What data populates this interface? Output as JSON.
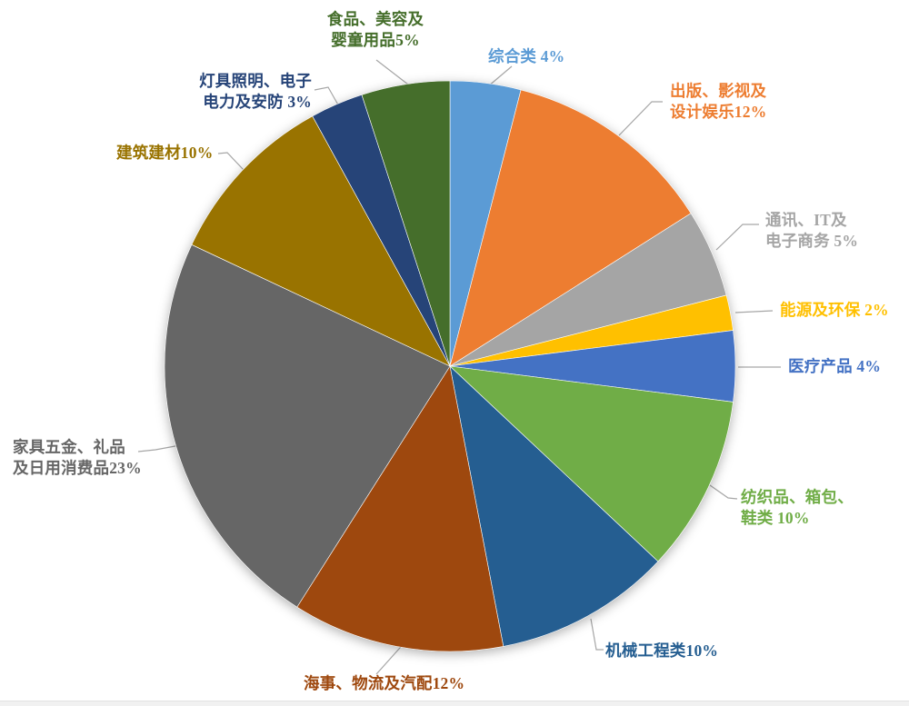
{
  "chart_data": {
    "type": "pie",
    "title": "",
    "legend": "none",
    "direction": "clockwise",
    "start_angle_deg": 0,
    "total": 100,
    "label_style": "category-name-with-percent, text colored same as slice, gray leader lines",
    "slices": [
      {
        "name": "综合类",
        "value": 4,
        "label": "综合类 4%",
        "lines": [
          "综合类 4%"
        ],
        "color": "#5B9BD5"
      },
      {
        "name": "出版、影视及设计娱乐",
        "value": 12,
        "label": "出版、影视及设计娱乐12%",
        "lines": [
          "出版、影视及",
          "设计娱乐12%"
        ],
        "color": "#ED7D31"
      },
      {
        "name": "通讯、IT及电子商务",
        "value": 5,
        "label": "通讯、IT及电子商务 5%",
        "lines": [
          "通讯、IT及",
          "电子商务 5%"
        ],
        "color": "#A5A5A5"
      },
      {
        "name": "能源及环保",
        "value": 2,
        "label": "能源及环保 2%",
        "lines": [
          "能源及环保 2%"
        ],
        "color": "#FFC000"
      },
      {
        "name": "医疗产品",
        "value": 4,
        "label": "医疗产品 4%",
        "lines": [
          "医疗产品 4%"
        ],
        "color": "#4472C4"
      },
      {
        "name": "纺织品、箱包、鞋类",
        "value": 10,
        "label": "纺织品、箱包、鞋类 10%",
        "lines": [
          "纺织品、箱包、",
          "鞋类 10%"
        ],
        "color": "#70AD47"
      },
      {
        "name": "机械工程类",
        "value": 10,
        "label": "机械工程类10%",
        "lines": [
          "机械工程类10%"
        ],
        "color": "#255E91"
      },
      {
        "name": "海事、物流及汽配",
        "value": 12,
        "label": "海事、物流及汽配12%",
        "lines": [
          "海事、物流及汽配12%"
        ],
        "color": "#9E480E"
      },
      {
        "name": "家具五金、礼品及日用消费品",
        "value": 23,
        "label": "家具五金、礼品及日用消费品23%",
        "lines": [
          "家具五金、礼品",
          "及日用消费品23%"
        ],
        "color": "#666666"
      },
      {
        "name": "建筑建材",
        "value": 10,
        "label": "建筑建材10%",
        "lines": [
          "建筑建材10%"
        ],
        "color": "#997300"
      },
      {
        "name": "灯具照明、电子电力及安防",
        "value": 3,
        "label": "灯具照明、电子电力及安防 3%",
        "lines": [
          "灯具照明、电子",
          "电力及安防 3%"
        ],
        "color": "#264478"
      },
      {
        "name": "食品、美容及婴童用品",
        "value": 5,
        "label": "食品、美容及婴童用品5%",
        "lines": [
          "食品、美容及",
          "婴童用品5%"
        ],
        "color": "#456E2B"
      }
    ]
  }
}
